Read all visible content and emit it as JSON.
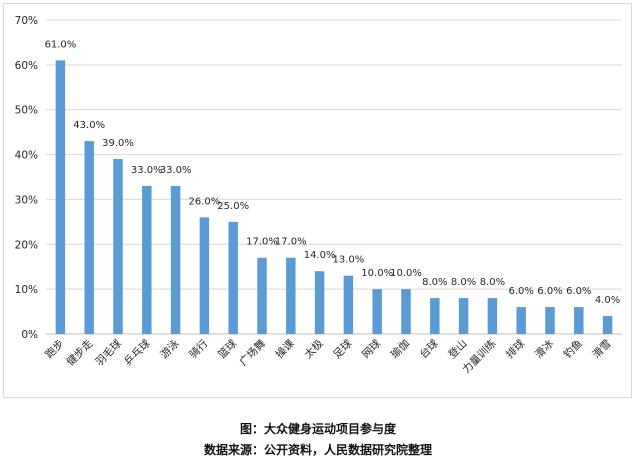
{
  "caption": {
    "title": "图：大众健身运动项目参与度",
    "source": "数据来源：公开资料，人民数据研究院整理"
  },
  "colors": {
    "bar": "#5b9bd5",
    "grid": "#d9d9d9",
    "axis": "#bfbfbf",
    "text": "#262626"
  },
  "chart_data": {
    "type": "bar",
    "title": "",
    "xlabel": "",
    "ylabel": "",
    "categories": [
      "跑步",
      "健步走",
      "羽毛球",
      "乒乓球",
      "游泳",
      "骑行",
      "篮球",
      "广场舞",
      "操课",
      "太极",
      "足球",
      "网球",
      "瑜伽",
      "台球",
      "登山",
      "力量训练",
      "排球",
      "滑冰",
      "钓鱼",
      "滑雪"
    ],
    "values": [
      61.0,
      43.0,
      39.0,
      33.0,
      33.0,
      26.0,
      25.0,
      17.0,
      17.0,
      14.0,
      13.0,
      10.0,
      10.0,
      8.0,
      8.0,
      8.0,
      6.0,
      6.0,
      6.0,
      4.0
    ],
    "value_labels": [
      "61.0%",
      "43.0%",
      "39.0%",
      "33.0%",
      "33.0%",
      "26.0%",
      "25.0%",
      "17.0%",
      "17.0%",
      "14.0%",
      "13.0%",
      "10.0%",
      "10.0%",
      "8.0%",
      "8.0%",
      "8.0%",
      "6.0%",
      "6.0%",
      "6.0%",
      "4.0%"
    ],
    "yticks": [
      "0%",
      "10%",
      "20%",
      "30%",
      "40%",
      "50%",
      "60%",
      "70%"
    ],
    "ylim": [
      0,
      70
    ],
    "grid": true,
    "legend": "none"
  }
}
